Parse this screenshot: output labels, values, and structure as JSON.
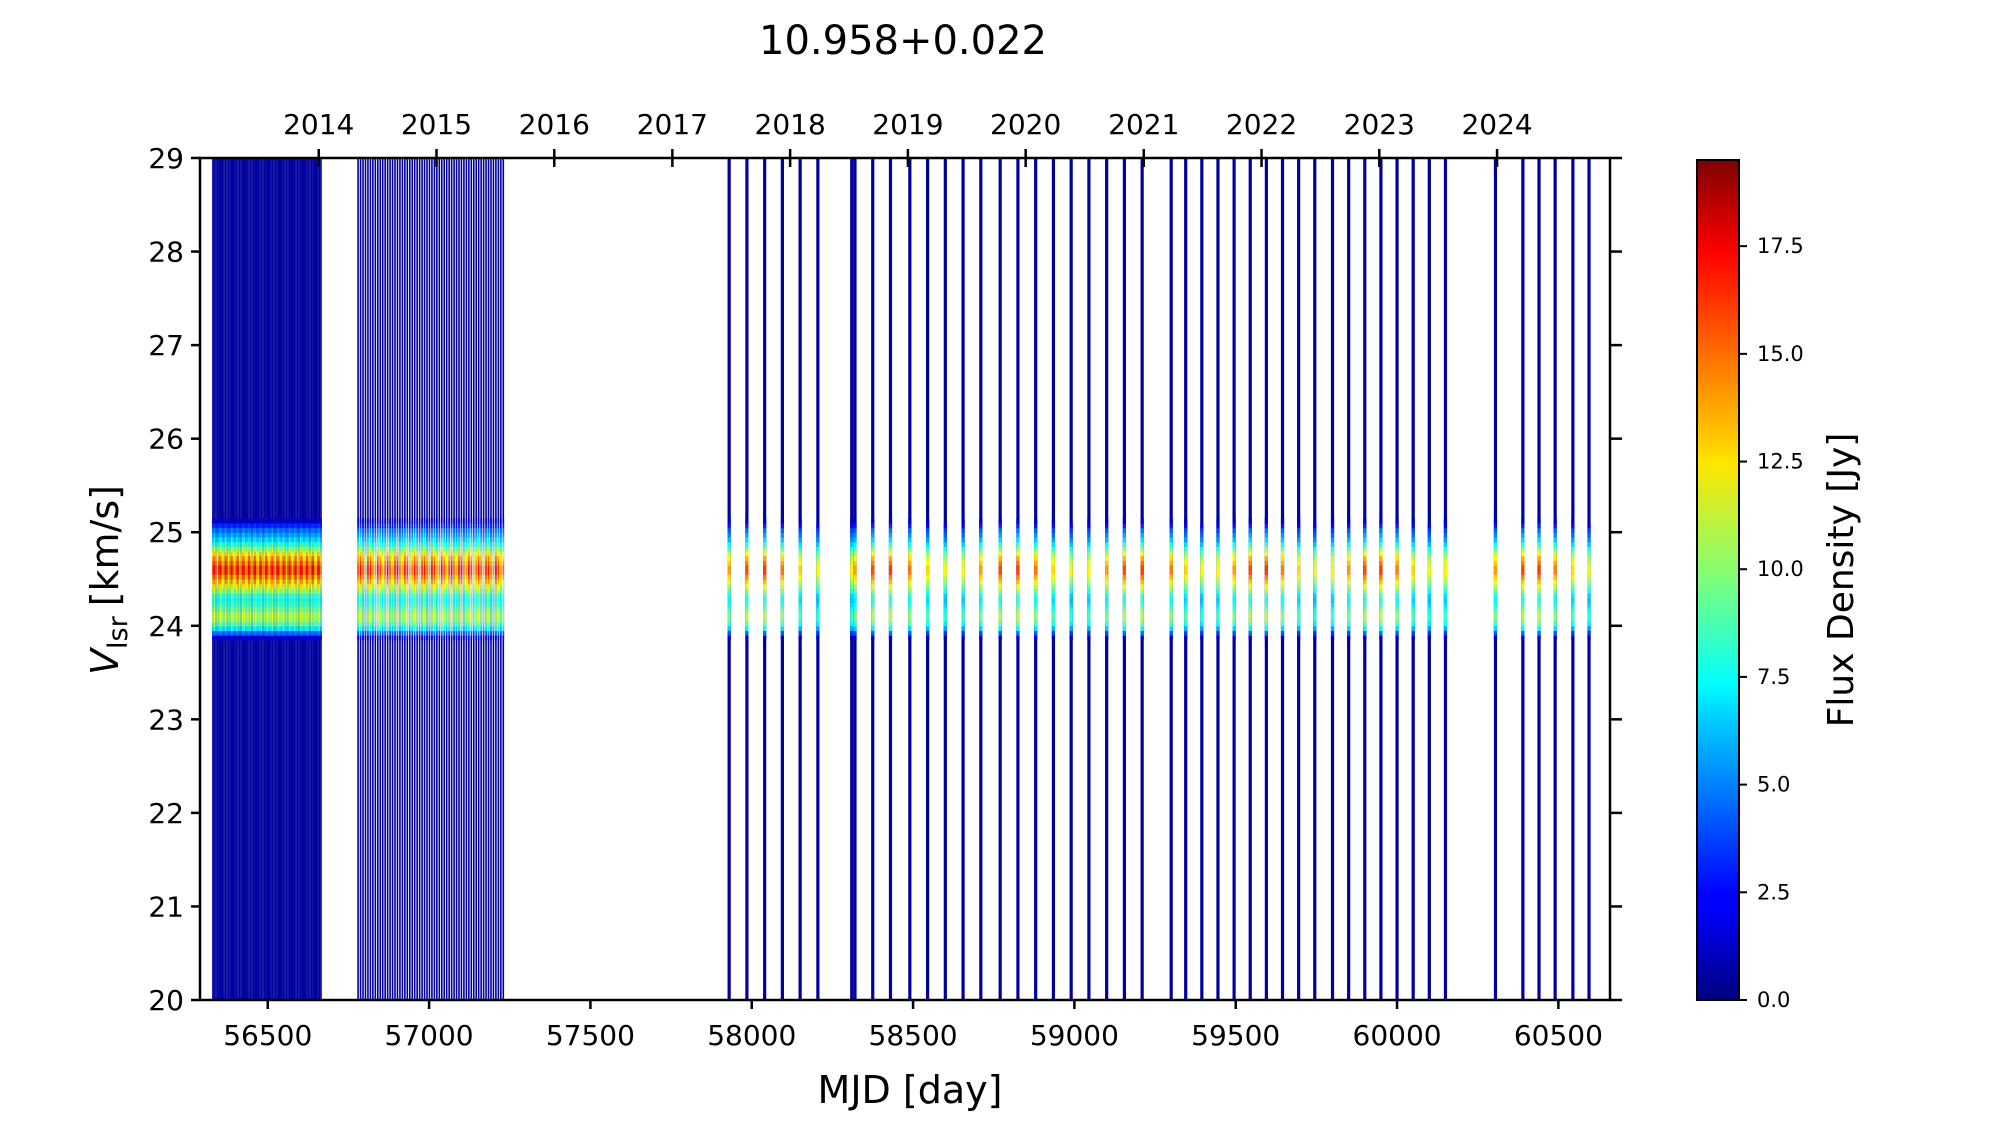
{
  "chart_data": {
    "type": "heatmap",
    "title": "10.958+0.022",
    "xlabel": "MJD [day]",
    "ylabel_main": "V",
    "ylabel_sub": "lsr",
    "ylabel_unit": "[km/s]",
    "xlim": [
      56290,
      60660
    ],
    "ylim": [
      20,
      29
    ],
    "x_ticks": [
      56500,
      57000,
      57500,
      58000,
      58500,
      59000,
      59500,
      60000,
      60500
    ],
    "x_tick_labels": [
      "56500",
      "57000",
      "57500",
      "58000",
      "58500",
      "59000",
      "59500",
      "60000",
      "60500"
    ],
    "y_ticks": [
      20,
      21,
      22,
      23,
      24,
      25,
      26,
      27,
      28,
      29
    ],
    "y_tick_labels": [
      "20",
      "21",
      "22",
      "23",
      "24",
      "25",
      "26",
      "27",
      "28",
      "29"
    ],
    "top_axis_years": [
      {
        "label": "2014",
        "mjd": 56658
      },
      {
        "label": "2015",
        "mjd": 57023
      },
      {
        "label": "2016",
        "mjd": 57388
      },
      {
        "label": "2017",
        "mjd": 57754
      },
      {
        "label": "2018",
        "mjd": 58119
      },
      {
        "label": "2019",
        "mjd": 58484
      },
      {
        "label": "2020",
        "mjd": 58849
      },
      {
        "label": "2021",
        "mjd": 59215
      },
      {
        "label": "2022",
        "mjd": 59580
      },
      {
        "label": "2023",
        "mjd": 59945
      },
      {
        "label": "2024",
        "mjd": 60310
      }
    ],
    "colorbar": {
      "label": "Flux Density [Jy]",
      "min": 0.0,
      "max": 19.5,
      "ticks": [
        0.0,
        2.5,
        5.0,
        7.5,
        10.0,
        12.5,
        15.0,
        17.5
      ],
      "tick_labels": [
        "0.0",
        "2.5",
        "5.0",
        "7.5",
        "10.0",
        "12.5",
        "15.0",
        "17.5"
      ],
      "colormap": "jet"
    },
    "dense_observation_blocks": [
      {
        "start_mjd": 56330,
        "end_mjd": 56665,
        "count": 70,
        "strength": 1.0
      },
      {
        "start_mjd": 56780,
        "end_mjd": 57230,
        "count": 60,
        "strength": 0.98
      }
    ],
    "observation_epochs_mjd": [
      57930,
      57985,
      58040,
      58095,
      58150,
      58205,
      58310,
      58320,
      58375,
      58430,
      58490,
      58545,
      58600,
      58655,
      58710,
      58770,
      58825,
      58880,
      58935,
      58990,
      59045,
      59100,
      59155,
      59210,
      59300,
      59345,
      59395,
      59445,
      59495,
      59545,
      59595,
      59645,
      59695,
      59745,
      59800,
      59850,
      59900,
      59950,
      60000,
      60050,
      60100,
      60150,
      60305,
      60390,
      60440,
      60490,
      60545,
      60595
    ],
    "spectral_profile": [
      {
        "v": 23.85,
        "flux": 0.3
      },
      {
        "v": 24.0,
        "flux": 9.5
      },
      {
        "v": 24.1,
        "flux": 12.5
      },
      {
        "v": 24.2,
        "flux": 10.0
      },
      {
        "v": 24.3,
        "flux": 8.5
      },
      {
        "v": 24.45,
        "flux": 14.0
      },
      {
        "v": 24.6,
        "flux": 18.0
      },
      {
        "v": 24.75,
        "flux": 14.5
      },
      {
        "v": 24.9,
        "flux": 8.0
      },
      {
        "v": 25.05,
        "flux": 4.5
      },
      {
        "v": 25.15,
        "flux": 0.4
      }
    ]
  }
}
